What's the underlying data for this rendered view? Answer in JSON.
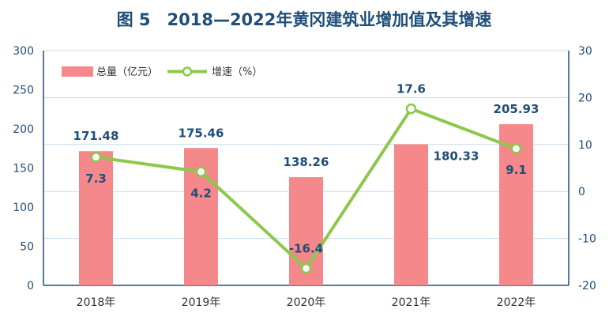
{
  "chart_data": {
    "type": "bar",
    "title": "图 5　2018—2022年黄冈建筑业增加值及其增速",
    "categories": [
      "2018年",
      "2019年",
      "2020年",
      "2021年",
      "2022年"
    ],
    "series": [
      {
        "name": "总量（亿元）",
        "type": "bar",
        "axis": "left",
        "color": "#f4888a",
        "values": [
          171.48,
          175.46,
          138.26,
          180.33,
          205.93
        ]
      },
      {
        "name": "增速（%）",
        "type": "line",
        "axis": "right",
        "color": "#8cc84b",
        "values": [
          7.3,
          4.2,
          -16.4,
          17.6,
          9.1
        ]
      }
    ],
    "left_axis": {
      "min": 0,
      "max": 300,
      "ticks": [
        "0",
        "50",
        "100",
        "150",
        "200",
        "250",
        "300"
      ]
    },
    "right_axis": {
      "min": -20,
      "max": 30,
      "ticks": [
        "-20",
        "-10",
        "0",
        "10",
        "20",
        "30"
      ]
    },
    "grid": "horizontal",
    "legend_position": "top-left"
  }
}
